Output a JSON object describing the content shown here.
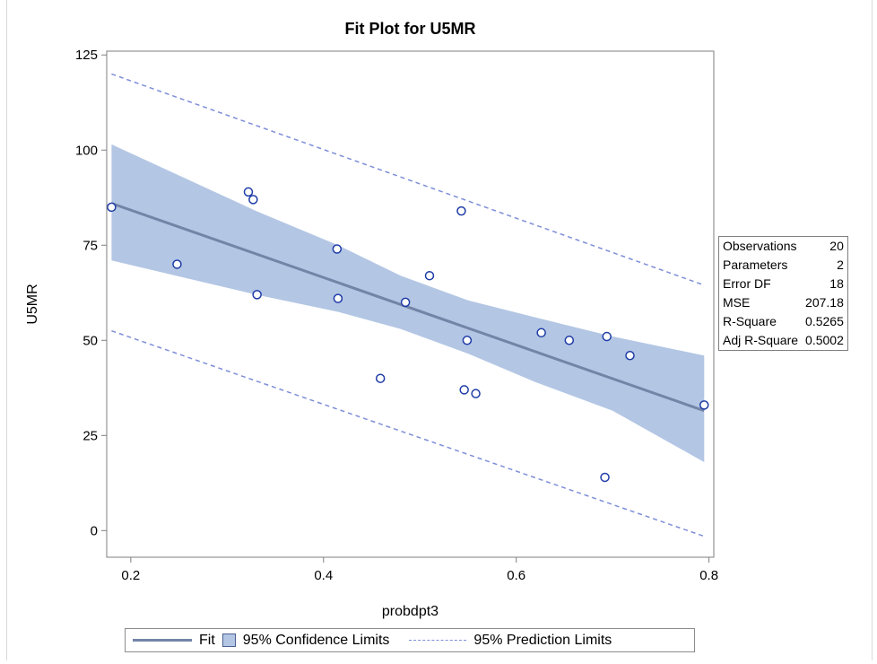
{
  "chart_data": {
    "type": "scatter",
    "title": "Fit Plot for U5MR",
    "xlabel": "probdpt3",
    "ylabel": "U5MR",
    "xlim": [
      0.175,
      0.805
    ],
    "ylim": [
      -7,
      126
    ],
    "xticks": [
      0.2,
      0.4,
      0.6,
      0.8
    ],
    "xtick_labels": [
      "0.2",
      "0.4",
      "0.6",
      "0.8"
    ],
    "yticks": [
      0,
      25,
      50,
      75,
      100,
      125
    ],
    "ytick_labels": [
      "0",
      "25",
      "50",
      "75",
      "100",
      "125"
    ],
    "grid": false,
    "points": [
      [
        0.18,
        85
      ],
      [
        0.248,
        70
      ],
      [
        0.322,
        89
      ],
      [
        0.327,
        87
      ],
      [
        0.331,
        62
      ],
      [
        0.414,
        74
      ],
      [
        0.415,
        61
      ],
      [
        0.459,
        40
      ],
      [
        0.485,
        60
      ],
      [
        0.51,
        67
      ],
      [
        0.543,
        84
      ],
      [
        0.546,
        37
      ],
      [
        0.549,
        50
      ],
      [
        0.558,
        36
      ],
      [
        0.626,
        52
      ],
      [
        0.655,
        50
      ],
      [
        0.692,
        14
      ],
      [
        0.694,
        51
      ],
      [
        0.718,
        46
      ],
      [
        0.795,
        33
      ]
    ],
    "fit": {
      "x": [
        0.18,
        0.795
      ],
      "y": [
        86,
        31.5
      ]
    },
    "confidence_band": {
      "x": [
        0.18,
        0.33,
        0.415,
        0.48,
        0.55,
        0.62,
        0.7,
        0.795
      ],
      "upper": [
        101.5,
        84,
        75,
        67,
        60.5,
        56,
        51,
        46
      ],
      "lower": [
        71,
        62,
        57.5,
        53,
        46.5,
        39,
        31.5,
        18
      ]
    },
    "prediction_limits": {
      "x": [
        0.18,
        0.795
      ],
      "upper": [
        120,
        64.5
      ],
      "lower": [
        52.5,
        -1.5
      ]
    },
    "legend": {
      "position": "bottom",
      "entries": [
        "Fit",
        "95% Confidence Limits",
        "95% Prediction Limits"
      ]
    },
    "stats_table": [
      {
        "label": "Observations",
        "value": "20"
      },
      {
        "label": "Parameters",
        "value": "2"
      },
      {
        "label": "Error DF",
        "value": "18"
      },
      {
        "label": "MSE",
        "value": "207.18"
      },
      {
        "label": "R-Square",
        "value": "0.5265"
      },
      {
        "label": "Adj R-Square",
        "value": "0.5002"
      }
    ],
    "colors": {
      "band": "#b3c6e4",
      "fit": "#7384a6",
      "prediction": "#7d8ed8",
      "marker": "#1f3ca6",
      "axis": "#7f7f7f"
    }
  }
}
